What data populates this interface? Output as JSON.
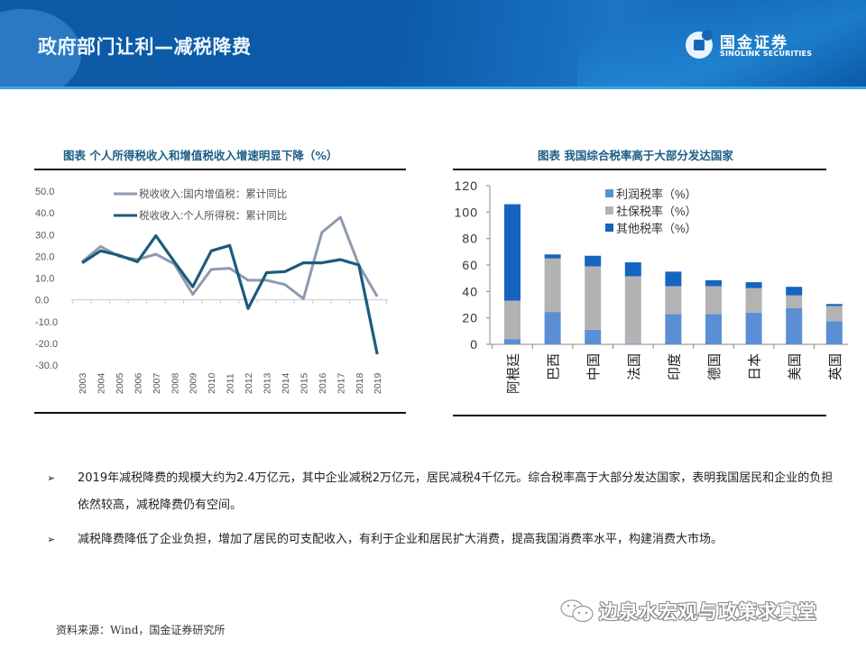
{
  "header": {
    "title": "政府部门让利—减税降费",
    "logo_cn": "国金证券",
    "logo_en": "SINOLINK SECURITIES",
    "colors": {
      "banner": "#0b5aa8",
      "stripe": "#3aa8e8"
    }
  },
  "chart_data": [
    {
      "type": "line",
      "title": "图表  个人所得税收入和增值税收入增速明显下降（%）",
      "xlabel": "",
      "ylabel": "",
      "x": [
        "2003",
        "2004",
        "2005",
        "2006",
        "2007",
        "2008",
        "2009",
        "2010",
        "2011",
        "2012",
        "2013",
        "2014",
        "2015",
        "2016",
        "2017",
        "2018",
        "2019"
      ],
      "ylim": [
        -30,
        50
      ],
      "yticks": [
        "50.0",
        "40.0",
        "30.0",
        "20.0",
        "10.0",
        "0.0",
        "-10.0",
        "-20.0",
        "-30.0"
      ],
      "ytick_values": [
        50,
        40,
        30,
        20,
        10,
        0,
        -10,
        -20,
        -30
      ],
      "legend_position": "top-left",
      "grid": false,
      "series": [
        {
          "name": "税收收入:国内增值税：累计同比",
          "color": "#8e9aae",
          "values": [
            17.5,
            24.5,
            20.0,
            18.5,
            21.0,
            16.5,
            2.5,
            14.0,
            14.5,
            9.0,
            9.0,
            7.0,
            0.5,
            31.0,
            38.0,
            16.0,
            1.5
          ]
        },
        {
          "name": "税收收入:个人所得税：累计同比",
          "color": "#1c5b7c",
          "values": [
            17.0,
            22.5,
            20.5,
            17.5,
            29.5,
            17.5,
            6.0,
            22.5,
            25.0,
            -4.0,
            12.5,
            13.0,
            17.0,
            17.0,
            18.5,
            16.0,
            -25.0
          ]
        }
      ]
    },
    {
      "type": "bar",
      "stacked": true,
      "title": "图表 我国综合税率高于大部分发达国家",
      "xlabel": "",
      "ylabel": "",
      "categories": [
        "阿根廷",
        "巴西",
        "中国",
        "法国",
        "印度",
        "德国",
        "日本",
        "美国",
        "英国"
      ],
      "ylim": [
        0,
        120
      ],
      "yticks": [
        "120",
        "100",
        "80",
        "60",
        "40",
        "20",
        "0"
      ],
      "ytick_values": [
        120,
        100,
        80,
        60,
        40,
        20,
        0
      ],
      "legend_position": "top-center",
      "grid": false,
      "series": [
        {
          "name": "利润税率（%）",
          "color": "#5b8fd4",
          "values": [
            4,
            24.5,
            11,
            0.5,
            23,
            23,
            24,
            27.5,
            17.5
          ]
        },
        {
          "name": "社保税率（%）",
          "color": "#b3b3b3",
          "values": [
            29,
            40.5,
            48,
            51,
            21,
            21,
            18.5,
            9.5,
            11.5
          ]
        },
        {
          "name": "其他税率（%）",
          "color": "#1664c0",
          "values": [
            73,
            3,
            8,
            10.5,
            11,
            4.5,
            4.5,
            6.5,
            1.5
          ]
        }
      ]
    }
  ],
  "bullets": [
    {
      "icon": "arrow-bullet-icon",
      "glyph": "➢",
      "text": "2019年减税降费的规模大约为2.4万亿元，其中企业减税2万亿元，居民减税4千亿元。综合税率高于大部分发达国家，表明我国居民和企业的负担依然较高，减税降费仍有空间。"
    },
    {
      "icon": "arrow-bullet-icon",
      "glyph": "➢",
      "text": "减税降费降低了企业负担，增加了居民的可支配收入，有利于企业和居民扩大消费，提高我国消费率水平，构建消费大市场。"
    }
  ],
  "source": "资料来源：Wind，国金证券研究所",
  "watermark": "边泉水宏观与政策求真堂"
}
